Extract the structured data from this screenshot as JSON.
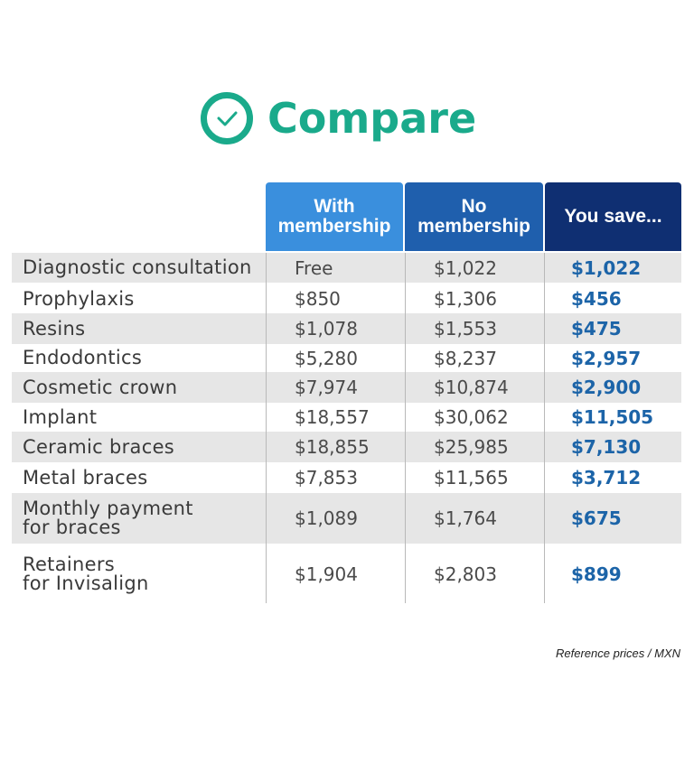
{
  "title": {
    "text": "Compare",
    "icon": "check-circle-icon",
    "color": "#1aaa8b"
  },
  "headers": {
    "with_membership": "With membership",
    "no_membership": "No membership",
    "you_save": "You save..."
  },
  "colors": {
    "with_header": "#3a8fdd",
    "no_header": "#1f5fad",
    "save_header": "#0f2f72",
    "save_value": "#1c64a8",
    "row_shade": "#e6e6e6"
  },
  "rows": [
    {
      "label_line1": "Diagnostic consultation",
      "label_line2": "",
      "with": "Free",
      "no": "$1,022",
      "save": "$1,022",
      "shaded": true
    },
    {
      "label_line1": "Prophylaxis",
      "label_line2": "",
      "with": "$850",
      "no": "$1,306",
      "save": "$456",
      "shaded": false
    },
    {
      "label_line1": "Resins",
      "label_line2": "",
      "with": "$1,078",
      "no": "$1,553",
      "save": "$475",
      "shaded": true
    },
    {
      "label_line1": "Endodontics",
      "label_line2": "",
      "with": "$5,280",
      "no": "$8,237",
      "save": "$2,957",
      "shaded": false
    },
    {
      "label_line1": "Cosmetic crown",
      "label_line2": "",
      "with": "$7,974",
      "no": "$10,874",
      "save": "$2,900",
      "shaded": true
    },
    {
      "label_line1": "Implant",
      "label_line2": "",
      "with": "$18,557",
      "no": "$30,062",
      "save": "$11,505",
      "shaded": false
    },
    {
      "label_line1": "Ceramic braces",
      "label_line2": "",
      "with": "$18,855",
      "no": "$25,985",
      "save": "$7,130",
      "shaded": true
    },
    {
      "label_line1": "Metal braces",
      "label_line2": "",
      "with": "$7,853",
      "no": "$11,565",
      "save": "$3,712",
      "shaded": false
    },
    {
      "label_line1": "Monthly payment",
      "label_line2": "for braces",
      "with": "$1,089",
      "no": "$1,764",
      "save": "$675",
      "shaded": true
    },
    {
      "label_line1": "Retainers",
      "label_line2": "for Invisalign",
      "with": "$1,904",
      "no": "$2,803",
      "save": "$899",
      "shaded": false
    }
  ],
  "footnote": "Reference prices / MXN"
}
